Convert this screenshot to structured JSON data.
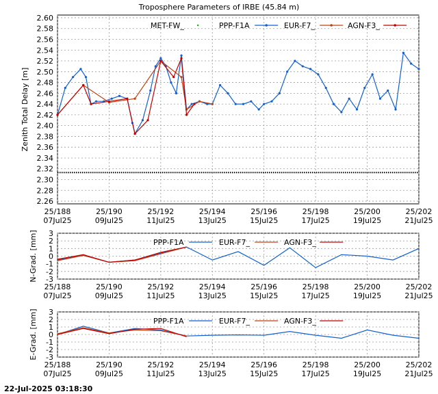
{
  "title": "Troposphere Parameters of IRBE (45.84 m)",
  "footer": "22-Jul-2025 03:18:30",
  "colors": {
    "met": "#00b000",
    "ppp": "#1060d0",
    "eur": "#c04010",
    "agn": "#c00000"
  },
  "chart_data": [
    {
      "type": "line",
      "ylabel": "Zenith Total Delay [m]",
      "ylim": [
        2.255,
        2.605
      ],
      "yticks": [
        "2.26",
        "2.28",
        "2.30",
        "2.32",
        "2.34",
        "2.36",
        "2.38",
        "2.40",
        "2.42",
        "2.44",
        "2.46",
        "2.48",
        "2.50",
        "2.52",
        "2.54",
        "2.56",
        "2.58",
        "2.60"
      ],
      "xlim": [
        188,
        202
      ],
      "xticks": [
        {
          "doy": 188,
          "top": "25/188",
          "bottom": "07Jul25"
        },
        {
          "doy": 190,
          "top": "25/190",
          "bottom": "09Jul25"
        },
        {
          "doy": 192,
          "top": "25/192",
          "bottom": "11Jul25"
        },
        {
          "doy": 194,
          "top": "25/194",
          "bottom": "13Jul25"
        },
        {
          "doy": 196,
          "top": "25/196",
          "bottom": "15Jul25"
        },
        {
          "doy": 198,
          "top": "25/198",
          "bottom": "17Jul25"
        },
        {
          "doy": 200,
          "top": "25/200",
          "bottom": "19Jul25"
        },
        {
          "doy": 202,
          "top": "25/202",
          "bottom": "21Jul25"
        }
      ],
      "legend": [
        "MET-FW_",
        "PPP-F1A",
        "EUR-F7_",
        "AGN-F3_"
      ],
      "series": [
        {
          "name": "MET-FW_",
          "constant": 2.313
        },
        {
          "name": "PPP-F1A",
          "x": [
            188.0,
            188.3,
            188.6,
            188.9,
            189.1,
            189.3,
            189.5,
            189.8,
            190.1,
            190.4,
            190.7,
            190.9,
            191.0,
            191.3,
            191.6,
            191.8,
            192.0,
            192.2,
            192.4,
            192.6,
            192.8,
            193.0,
            193.2,
            193.5,
            193.8,
            194.0,
            194.3,
            194.6,
            194.9,
            195.2,
            195.5,
            195.8,
            196.0,
            196.3,
            196.6,
            196.9,
            197.2,
            197.5,
            197.8,
            198.1,
            198.4,
            198.7,
            199.0,
            199.3,
            199.6,
            199.9,
            200.2,
            200.5,
            200.8,
            201.1,
            201.4,
            201.7,
            202.0
          ],
          "values": [
            2.42,
            2.47,
            2.49,
            2.505,
            2.49,
            2.44,
            2.445,
            2.445,
            2.45,
            2.455,
            2.45,
            2.405,
            2.385,
            2.41,
            2.465,
            2.51,
            2.525,
            2.51,
            2.48,
            2.46,
            2.53,
            2.43,
            2.44,
            2.445,
            2.44,
            2.44,
            2.475,
            2.46,
            2.44,
            2.44,
            2.445,
            2.43,
            2.44,
            2.445,
            2.46,
            2.5,
            2.52,
            2.51,
            2.505,
            2.495,
            2.47,
            2.44,
            2.425,
            2.45,
            2.43,
            2.47,
            2.495,
            2.45,
            2.465,
            2.43,
            2.535,
            2.515,
            2.505
          ]
        },
        {
          "name": "EUR-F7_",
          "x": [
            188.0,
            189.0,
            190.0,
            191.0,
            192.0,
            192.8,
            193.0,
            193.5,
            194.0
          ],
          "values": [
            2.42,
            2.475,
            2.443,
            2.45,
            2.52,
            2.49,
            2.43,
            2.445,
            2.44
          ]
        },
        {
          "name": "AGN-F3_",
          "x": [
            188.0,
            189.0,
            189.3,
            190.0,
            190.7,
            191.0,
            191.5,
            192.0,
            192.5,
            192.8,
            193.0,
            193.3
          ],
          "values": [
            2.42,
            2.475,
            2.44,
            2.445,
            2.45,
            2.385,
            2.41,
            2.52,
            2.49,
            2.525,
            2.42,
            2.44
          ]
        }
      ]
    },
    {
      "type": "line",
      "ylabel": "N-Grad. [mm]",
      "ylim": [
        -3,
        3
      ],
      "yticks": [
        "3",
        "2",
        "1",
        "0",
        "-1",
        "-2",
        "-3"
      ],
      "xlim": [
        188,
        202
      ],
      "legend": [
        "PPP-F1A",
        "EUR-F7_",
        "AGN-F3_"
      ],
      "series": [
        {
          "name": "PPP-F1A",
          "x": [
            188,
            189,
            190,
            191,
            192,
            193,
            194,
            195,
            196,
            197,
            198,
            199,
            200,
            201,
            202
          ],
          "values": [
            -0.5,
            0.1,
            -0.8,
            -0.5,
            0.4,
            1.2,
            -0.5,
            0.6,
            -1.2,
            1.1,
            -1.5,
            0.2,
            0.0,
            -0.5,
            1.0
          ]
        },
        {
          "name": "EUR-F7_",
          "x": [
            188,
            189,
            190,
            191,
            192,
            193
          ],
          "values": [
            -0.6,
            0.1,
            -0.8,
            -0.6,
            0.3,
            1.2
          ]
        },
        {
          "name": "AGN-F3_",
          "x": [
            188,
            189,
            190,
            191,
            192,
            193
          ],
          "values": [
            -0.4,
            0.2,
            -0.8,
            -0.5,
            0.5,
            1.2
          ]
        }
      ]
    },
    {
      "type": "line",
      "ylabel": "E-Grad. [mm]",
      "ylim": [
        -3,
        3
      ],
      "yticks": [
        "3",
        "2",
        "1",
        "0",
        "-1",
        "-2",
        "-3"
      ],
      "xlim": [
        188,
        202
      ],
      "legend": [
        "PPP-F1A",
        "EUR-F7_",
        "AGN-F3_"
      ],
      "series": [
        {
          "name": "PPP-F1A",
          "x": [
            188,
            189,
            190,
            191,
            192,
            193,
            194,
            195,
            196,
            197,
            198,
            199,
            200,
            201,
            202
          ],
          "values": [
            0.0,
            1.1,
            0.2,
            0.8,
            0.6,
            -0.2,
            -0.1,
            -0.05,
            -0.1,
            0.4,
            -0.1,
            -0.5,
            0.6,
            -0.1,
            -0.5
          ]
        },
        {
          "name": "EUR-F7_",
          "x": [
            188,
            189,
            190,
            191,
            192,
            193
          ],
          "values": [
            0.1,
            0.9,
            0.2,
            0.6,
            0.5,
            -0.2
          ]
        },
        {
          "name": "AGN-F3_",
          "x": [
            188,
            189,
            190,
            191,
            192,
            193
          ],
          "values": [
            0.0,
            0.8,
            0.1,
            0.7,
            0.8,
            -0.3
          ]
        }
      ]
    }
  ]
}
